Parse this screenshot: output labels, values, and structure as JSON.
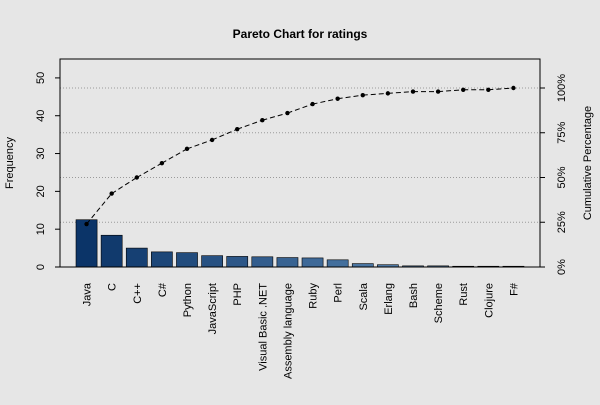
{
  "chart_data": {
    "type": "bar",
    "title": "Pareto Chart for ratings",
    "xlabel": "",
    "ylabel": "Frequency",
    "y2label": "Cumulative Percentage",
    "categories": [
      "Java",
      "C",
      "C++",
      "C#",
      "Python",
      "JavaScript",
      "PHP",
      "Visual Basic .NET",
      "Assembly language",
      "Ruby",
      "Perl",
      "Scala",
      "Erlang",
      "Bash",
      "Scheme",
      "Rust",
      "Clojure",
      "F#"
    ],
    "values": [
      12.5,
      8.4,
      5.0,
      4.0,
      3.8,
      3.0,
      2.8,
      2.7,
      2.5,
      2.4,
      1.9,
      0.9,
      0.6,
      0.3,
      0.3,
      0.2,
      0.2,
      0.2
    ],
    "cumulative_percent": [
      24,
      41,
      50,
      58,
      66,
      71,
      77,
      82,
      86,
      91,
      94,
      96,
      97,
      98,
      98,
      99,
      99,
      100
    ],
    "ylim": [
      0,
      55
    ],
    "y_ticks": [
      "0",
      "10",
      "20",
      "30",
      "40",
      "50"
    ],
    "y2_ticks": [
      "0%",
      "25%",
      "50%",
      "75%",
      "100%"
    ],
    "bar_color_dark": "#0b3468",
    "bar_color_light": "#6b98c2",
    "cumulative_line_color": "#000000",
    "grid": "horizontal dotted at 25% intervals of cumulative axis"
  }
}
